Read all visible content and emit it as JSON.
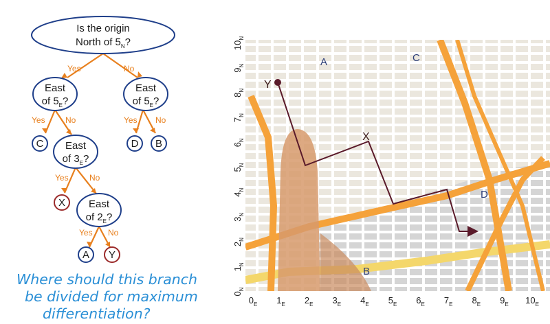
{
  "tree": {
    "root": {
      "line1": "Is the origin",
      "line2_main": "North of 5",
      "line2_sub": "N",
      "line2_end": "?"
    },
    "left_test": {
      "line1": "East",
      "line2_main": "of 5",
      "line2_sub": "E",
      "line2_end": "?"
    },
    "right_test": {
      "line1": "East",
      "line2_main": "of 5",
      "line2_sub": "E",
      "line2_end": "?"
    },
    "east3_test": {
      "line1": "East",
      "line2_main": "of 3",
      "line2_sub": "E",
      "line2_end": "?"
    },
    "east2_test": {
      "line1": "East",
      "line2_main": "of 2",
      "line2_sub": "E",
      "line2_end": "?"
    },
    "leaves": {
      "c": "C",
      "d": "D",
      "b": "B",
      "x": "X",
      "a": "A",
      "y": "Y"
    },
    "yes_label": "Yes",
    "no_label": "No",
    "colors": {
      "edge": "#e8801e",
      "node_stroke": "#1f3f8a",
      "leaf_red": "#9b2a2a",
      "leaf_blue": "#1f3f8a"
    }
  },
  "question": {
    "line1": "Where should this branch",
    "line2": "be divided for maximum",
    "line3": "differentiation?"
  },
  "map": {
    "y_axis": [
      {
        "n": "0",
        "s": "N"
      },
      {
        "n": "1",
        "s": "N"
      },
      {
        "n": "2",
        "s": "N"
      },
      {
        "n": "3",
        "s": "N"
      },
      {
        "n": "4",
        "s": "N"
      },
      {
        "n": "5",
        "s": "N"
      },
      {
        "n": "6",
        "s": "N"
      },
      {
        "n": "7",
        "s": "N"
      },
      {
        "n": "8",
        "s": "N"
      },
      {
        "n": "9",
        "s": "N"
      },
      {
        "n": "10",
        "s": "N"
      }
    ],
    "x_axis": [
      {
        "n": "0",
        "s": "E"
      },
      {
        "n": "1",
        "s": "E"
      },
      {
        "n": "2",
        "s": "E"
      },
      {
        "n": "3",
        "s": "E"
      },
      {
        "n": "4",
        "s": "E"
      },
      {
        "n": "5",
        "s": "E"
      },
      {
        "n": "6",
        "s": "E"
      },
      {
        "n": "7",
        "s": "E"
      },
      {
        "n": "8",
        "s": "E"
      },
      {
        "n": "9",
        "s": "E"
      },
      {
        "n": "10",
        "s": "E"
      }
    ],
    "regions": {
      "a": "A",
      "b": "B",
      "c": "C",
      "d": "D"
    },
    "points": {
      "x": "X",
      "y": "Y"
    },
    "colors": {
      "road": "#f5a23a",
      "highway_yellow": "#f4d76b",
      "block": "#ece8df",
      "route": "#5a1a2a"
    }
  }
}
